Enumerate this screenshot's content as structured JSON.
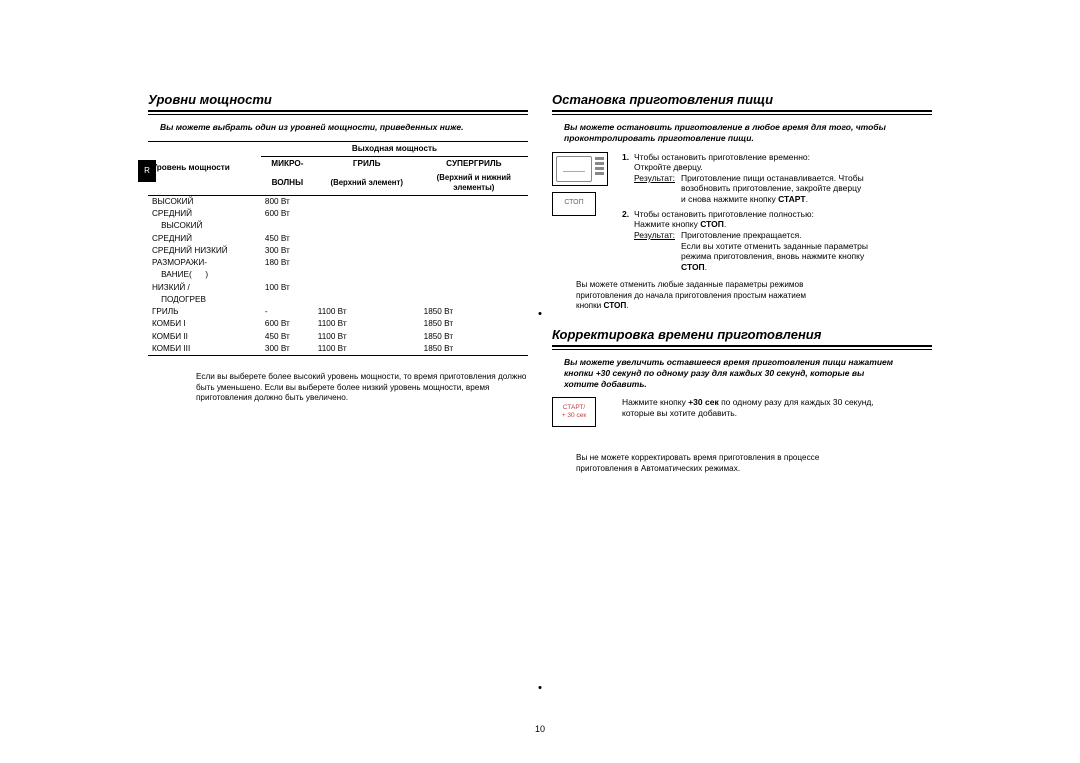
{
  "sideTab": "R",
  "pageNumber": "10",
  "left": {
    "title": "Уровни мощности",
    "intro": "Вы можете выбрать один из уровней мощности, приведенных ниже.",
    "table": {
      "header_level": "Уровень мощности",
      "header_output": "Выходная мощность",
      "col_micro_l1": "МИКРО-",
      "col_micro_l2": "ВОЛНЫ",
      "col_grill": "ГРИЛЬ",
      "col_grill_sub": "(Верхний элемент)",
      "col_super": "СУПЕРГРИЛЬ",
      "col_super_sub_l1": "(Верхний и нижний",
      "col_super_sub_l2": "элементы)",
      "rows": [
        {
          "name": "ВЫСОКИЙ",
          "micro": "800 Вт",
          "grill": "",
          "super": ""
        },
        {
          "name": "СРЕДНИЙ",
          "micro": "600 Вт",
          "grill": "",
          "super": ""
        },
        {
          "name": "    ВЫСОКИЙ",
          "micro": "",
          "grill": "",
          "super": ""
        },
        {
          "name": "СРЕДНИЙ",
          "micro": "450 Вт",
          "grill": "",
          "super": ""
        },
        {
          "name": "СРЕДНИЙ НИЗКИЙ",
          "micro": "300 Вт",
          "grill": "",
          "super": ""
        },
        {
          "name": "РАЗМОРАЖИ-",
          "micro": "180 Вт",
          "grill": "",
          "super": ""
        },
        {
          "name": "    ВАНИЕ(      )",
          "micro": "",
          "grill": "",
          "super": ""
        },
        {
          "name": "НИЗКИЙ /",
          "micro": "100 Вт",
          "grill": "",
          "super": ""
        },
        {
          "name": "    ПОДОГРЕВ",
          "micro": "",
          "grill": "",
          "super": ""
        },
        {
          "name": "ГРИЛЬ",
          "micro": "-",
          "grill": "1100 Вт",
          "super": "1850 Вт"
        },
        {
          "name": "КОМБИ I",
          "micro": "600 Вт",
          "grill": "1100 Вт",
          "super": "1850 Вт"
        },
        {
          "name": "КОМБИ II",
          "micro": "450 Вт",
          "grill": "1100 Вт",
          "super": "1850 Вт"
        },
        {
          "name": "КОМБИ III",
          "micro": "300 Вт",
          "grill": "1100 Вт",
          "super": "1850 Вт"
        }
      ]
    },
    "note": "Если вы выберете более высокий уровень мощности, то время приготовления должно быть уменьшено. Если вы выберете более низкий уровень мощности, время приготовления должно быть увеличено."
  },
  "right": {
    "sec1": {
      "title": "Остановка приготовления пищи",
      "intro": "Вы можете остановить приготовление в любое время для того, чтобы проконтролировать приготовление пищи.",
      "stop_label": "СТОП",
      "step1_n": "1.",
      "step1_a": "Чтобы остановить приготовление временно:",
      "step1_b": "Откройте дверцу.",
      "step1_res_label": "Результат:",
      "step1_res_a": "Приготовление пищи останавливается. Чтобы",
      "step1_res_b": "возобновить приготовление, закройте дверцу",
      "step1_res_c_pre": "и снова нажмите кнопку ",
      "step1_res_c_b": "СТАРТ",
      "step1_res_c_post": ".",
      "step2_n": "2.",
      "step2_a": "Чтобы остановить приготовление полностью:",
      "step2_b_pre": "Нажмите кнопку ",
      "step2_b_b": "СТОП",
      "step2_b_post": ".",
      "step2_res_label": "Результат:",
      "step2_res_a": "Приготовление прекращается.",
      "step2_res_b": "Если вы хотите отменить заданные параметры",
      "step2_res_c": "режима приготовления, вновь нажмите кнопку",
      "step2_res_d": "СТОП",
      "step2_res_d_post": ".",
      "note_a": "Вы можете отменить любые заданные параметры режимов",
      "note_b": "приготовления до начала приготовления простым нажатием",
      "note_c_pre": "кнопки ",
      "note_c_b": "СТОП",
      "note_c_post": "."
    },
    "sec2": {
      "title": "Корректировка времени приготовления",
      "intro_a": "Вы можете увеличить оставшееся время приготовления пищи нажатием",
      "intro_b": "кнопки +30 секунд по одному разу для каждых 30 секунд, которые вы",
      "intro_c": "хотите добавить.",
      "btn_l1": "СТАРТ/",
      "btn_l2": "+ 30 сек",
      "step_a_pre": "Нажмите кнопку ",
      "step_a_b": "+30 сек",
      "step_a_post": " по одному разу для каждых 30 секунд,",
      "step_b": "которые вы хотите добавить.",
      "note_a": "Вы не можете корректировать время приготовления в процессе",
      "note_b": "приготовления в Автоматических режимах."
    }
  }
}
